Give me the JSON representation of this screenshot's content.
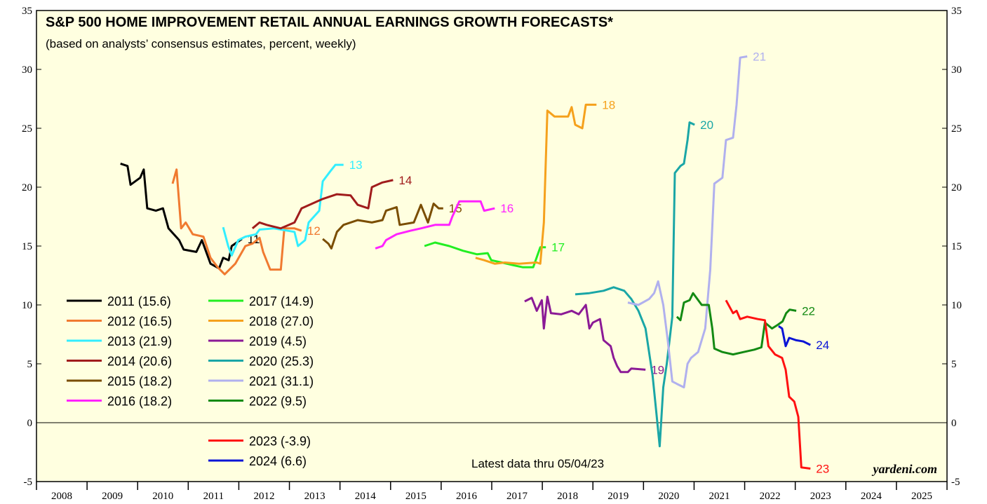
{
  "chart_data": {
    "type": "line",
    "title": "S&P 500 HOME IMPROVEMENT RETAIL ANNUAL EARNINGS GROWTH FORECASTS*",
    "subtitle": "(based on analysts’ consensus estimates, percent, weekly)",
    "annotations": [
      "Latest data thru 05/04/23",
      "yardeni.com"
    ],
    "categories": [
      "2008",
      "2009",
      "2010",
      "2011",
      "2012",
      "2013",
      "2014",
      "2015",
      "2016",
      "2017",
      "2018",
      "2019",
      "2020",
      "2021",
      "2022",
      "2023",
      "2024",
      "2025"
    ],
    "xlim": [
      2008,
      2026
    ],
    "xticks": [
      2008,
      2009,
      2010,
      2011,
      2012,
      2013,
      2014,
      2015,
      2016,
      2017,
      2018,
      2019,
      2020,
      2021,
      2022,
      2023,
      2024,
      2025,
      2026
    ],
    "ylim": [
      -5,
      35
    ],
    "yticks": [
      -5,
      0,
      5,
      10,
      15,
      20,
      25,
      30,
      35
    ],
    "y2lim": [
      -5,
      35
    ],
    "y2ticks": [
      -5,
      0,
      5,
      10,
      15,
      20,
      25,
      30,
      35
    ],
    "series": [
      {
        "name": "2011 (15.6)",
        "end_label": "11",
        "color": "#000000",
        "x": [
          2009.66,
          2009.8,
          2009.86,
          2010.05,
          2010.12,
          2010.19,
          2010.36,
          2010.5,
          2010.61,
          2010.82,
          2010.91,
          2011.16,
          2011.27,
          2011.44,
          2011.61,
          2011.69,
          2011.8,
          2011.86,
          2012.06
        ],
        "values": [
          22,
          21.8,
          20.2,
          20.8,
          21.5,
          18.2,
          18,
          18.2,
          16.5,
          15.5,
          14.7,
          14.5,
          15.5,
          13.5,
          13.1,
          14,
          13.8,
          15,
          15.6
        ]
      },
      {
        "name": "2012 (16.5)",
        "end_label": "12",
        "color": "#f07a30",
        "x": [
          2010.69,
          2010.77,
          2010.86,
          2010.95,
          2011.09,
          2011.3,
          2011.44,
          2011.58,
          2011.72,
          2011.93,
          2012.13,
          2012.27,
          2012.41,
          2012.48,
          2012.62,
          2012.83,
          2012.9,
          2013.1,
          2013.24
        ],
        "values": [
          20.3,
          21.5,
          16.5,
          17,
          16,
          15.8,
          14,
          13.2,
          12.6,
          13.5,
          15,
          15.2,
          15.7,
          14.5,
          13,
          13,
          16.5,
          16.5,
          16.3
        ]
      },
      {
        "name": "2013 (21.9)",
        "end_label": "13",
        "color": "#33eeff",
        "x": [
          2011.69,
          2011.79,
          2011.86,
          2011.99,
          2012.13,
          2012.34,
          2012.41,
          2012.69,
          2012.97,
          2013.1,
          2013.17,
          2013.31,
          2013.38,
          2013.59,
          2013.66,
          2013.8,
          2013.91,
          2014.07
        ],
        "values": [
          16.6,
          15,
          14.2,
          15.5,
          15.8,
          16,
          16.4,
          16.5,
          16.3,
          16.2,
          15,
          15.5,
          17,
          18,
          20.5,
          21.3,
          21.9,
          21.9
        ]
      },
      {
        "name": "2014 (20.6)",
        "end_label": "14",
        "color": "#a01c1c",
        "x": [
          2012.27,
          2012.41,
          2012.55,
          2012.83,
          2013.1,
          2013.24,
          2013.45,
          2013.66,
          2013.94,
          2014.21,
          2014.35,
          2014.56,
          2014.63,
          2014.84,
          2015.05
        ],
        "values": [
          16.5,
          17,
          16.8,
          16.5,
          17,
          18.2,
          18.6,
          19,
          19.4,
          19.3,
          18.5,
          18.2,
          20,
          20.4,
          20.6
        ]
      },
      {
        "name": "2015 (18.2)",
        "end_label": "15",
        "color": "#7a4d00",
        "x": [
          2013.66,
          2013.77,
          2013.83,
          2013.94,
          2014.07,
          2014.35,
          2014.63,
          2014.84,
          2014.91,
          2015.12,
          2015.18,
          2015.46,
          2015.6,
          2015.74,
          2015.85,
          2015.95,
          2016.04
        ],
        "values": [
          15.6,
          15.2,
          14.8,
          16.2,
          16.8,
          17.2,
          17,
          17.2,
          18,
          18.3,
          16.8,
          17,
          18.5,
          17,
          18.6,
          18.2,
          18.2
        ]
      },
      {
        "name": "2016 (18.2)",
        "end_label": "16",
        "color": "#ff22ff",
        "x": [
          2014.7,
          2014.84,
          2014.91,
          2015.12,
          2015.39,
          2015.6,
          2015.88,
          2016.16,
          2016.22,
          2016.36,
          2016.78,
          2016.85,
          2017.06
        ],
        "values": [
          14.8,
          15,
          15.5,
          16,
          16.3,
          16.5,
          16.8,
          16.8,
          17.5,
          18.8,
          18.8,
          18,
          18.2
        ]
      },
      {
        "name": "2017 (14.9)",
        "end_label": "17",
        "color": "#22ee22",
        "x": [
          2015.67,
          2015.88,
          2016.16,
          2016.43,
          2016.71,
          2016.92,
          2016.99,
          2017.2,
          2017.4,
          2017.61,
          2017.82,
          2017.96,
          2018.07
        ],
        "values": [
          15,
          15.3,
          15,
          14.6,
          14.3,
          14.4,
          13.8,
          13.6,
          13.4,
          13.2,
          13.2,
          14.9,
          14.9
        ]
      },
      {
        "name": "2018 (27.0)",
        "end_label": "18",
        "color": "#f5a11c",
        "x": [
          2016.68,
          2016.85,
          2017.06,
          2017.26,
          2017.54,
          2017.89,
          2017.96,
          2018.03,
          2018.1,
          2018.24,
          2018.37,
          2018.51,
          2018.58,
          2018.65,
          2018.79,
          2018.86,
          2019.07
        ],
        "values": [
          14,
          13.8,
          13.5,
          13.6,
          13.5,
          13.6,
          13.5,
          17,
          26.5,
          26,
          26,
          26,
          26.8,
          25.3,
          25,
          27,
          27
        ]
      },
      {
        "name": "2019 (4.5)",
        "end_label": "19",
        "color": "#8b1a96",
        "x": [
          2017.65,
          2017.79,
          2017.89,
          2017.99,
          2018.03,
          2018.1,
          2018.17,
          2018.37,
          2018.58,
          2018.72,
          2018.86,
          2018.93,
          2019,
          2019.14,
          2019.21,
          2019.35,
          2019.41,
          2019.48,
          2019.55,
          2019.69,
          2019.76,
          2020.04
        ],
        "values": [
          10.3,
          10.6,
          9.5,
          10.4,
          8,
          10.7,
          9.3,
          9.2,
          9.5,
          9.2,
          10,
          8,
          8.5,
          8.8,
          7,
          6.5,
          5.5,
          4.8,
          4.3,
          4.3,
          4.6,
          4.5
        ]
      },
      {
        "name": "2020 (25.3)",
        "end_label": "20",
        "color": "#1aa6a6",
        "x": [
          2018.65,
          2018.93,
          2019.21,
          2019.41,
          2019.62,
          2019.76,
          2019.9,
          2020.04,
          2020.18,
          2020.25,
          2020.32,
          2020.39,
          2020.46,
          2020.57,
          2020.62,
          2020.73,
          2020.8,
          2020.87,
          2020.91,
          2021.01
        ],
        "values": [
          10.9,
          11,
          11.2,
          11.5,
          11.2,
          10.5,
          9.5,
          8,
          4,
          1,
          -2,
          3,
          5,
          9,
          21.2,
          21.8,
          22,
          24,
          25.5,
          25.3
        ]
      },
      {
        "name": "2021 (31.1)",
        "end_label": "21",
        "color": "#b0b0ee",
        "x": [
          2019.69,
          2019.9,
          2020.11,
          2020.21,
          2020.29,
          2020.39,
          2020.48,
          2020.57,
          2020.66,
          2020.8,
          2020.87,
          2020.94,
          2021.08,
          2021.22,
          2021.32,
          2021.4,
          2021.56,
          2021.63,
          2021.77,
          2021.84,
          2021.91,
          2022.05
        ],
        "values": [
          10.2,
          10,
          10.5,
          11,
          12,
          10,
          7,
          3.5,
          3.3,
          3,
          5,
          5.5,
          6,
          8,
          13,
          20.3,
          20.8,
          24,
          24.2,
          27,
          31,
          31.1
        ]
      },
      {
        "name": "2022 (9.5)",
        "end_label": "22",
        "color": "#138a13",
        "x": [
          2020.66,
          2020.73,
          2020.8,
          2020.91,
          2020.98,
          2021.15,
          2021.29,
          2021.36,
          2021.4,
          2021.56,
          2021.77,
          2021.98,
          2022.19,
          2022.33,
          2022.4,
          2022.54,
          2022.65,
          2022.75,
          2022.82,
          2022.89,
          2023.02
        ],
        "values": [
          9,
          8.7,
          10.2,
          10.4,
          11,
          10,
          10,
          8,
          6.3,
          6,
          5.8,
          6,
          6.2,
          6.4,
          8.5,
          8,
          8.3,
          8.6,
          9.3,
          9.6,
          9.5
        ]
      },
      {
        "name": "2023 (-3.9)",
        "end_label": "23",
        "color": "#ff1111",
        "x": [
          2021.63,
          2021.77,
          2021.84,
          2021.91,
          2022.05,
          2022.26,
          2022.4,
          2022.47,
          2022.6,
          2022.74,
          2022.81,
          2022.88,
          2022.98,
          2023.06,
          2023.12,
          2023.3
        ],
        "values": [
          10.4,
          9.3,
          9.5,
          8.8,
          9,
          8.8,
          8.7,
          6.5,
          5.8,
          5.5,
          4.5,
          2.2,
          1.8,
          0.5,
          -3.8,
          -3.9
        ]
      },
      {
        "name": "2024 (6.6)",
        "end_label": "24",
        "color": "#0a14d6",
        "x": [
          2022.67,
          2022.74,
          2022.81,
          2022.88,
          2023.02,
          2023.16,
          2023.3
        ],
        "values": [
          8.2,
          8,
          6.5,
          7.2,
          7,
          6.9,
          6.6
        ]
      }
    ]
  }
}
